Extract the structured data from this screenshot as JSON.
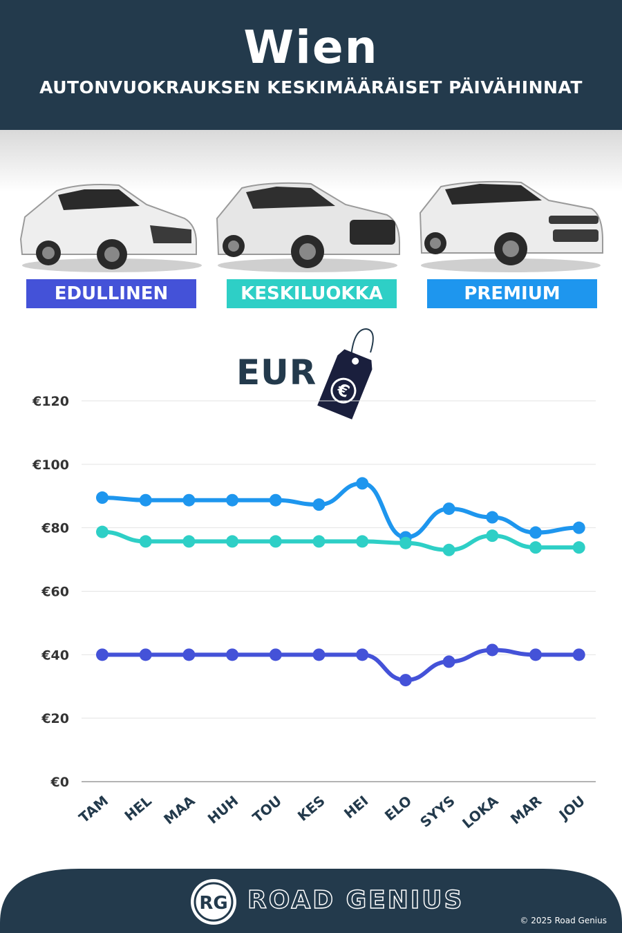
{
  "header": {
    "title": "Wien",
    "subtitle": "AUTONVUOKRAUKSEN KESKIMÄÄRÄISET PÄIVÄHINNAT"
  },
  "categories": [
    {
      "label": "EDULLINEN",
      "color": "#4452d8"
    },
    {
      "label": "KESKILUOKKA",
      "color": "#2ecfc6"
    },
    {
      "label": "PREMIUM",
      "color": "#1e96ee"
    }
  ],
  "currency_label": "EUR",
  "currency_icon": "euro-price-tag-icon",
  "chart_data": {
    "type": "line",
    "categories": [
      "TAM",
      "HEL",
      "MAA",
      "HUH",
      "TOU",
      "KES",
      "HEI",
      "ELO",
      "SYYS",
      "LOKA",
      "MAR",
      "JOU"
    ],
    "y_ticks": [
      "€0",
      "€20",
      "€40",
      "€60",
      "€80",
      "€100",
      "€120"
    ],
    "ylim": [
      0,
      120
    ],
    "grid": true,
    "series": [
      {
        "name": "PREMIUM",
        "color": "#1e96ee",
        "values": [
          89.5,
          88.7,
          88.7,
          88.7,
          88.7,
          87.3,
          94,
          77,
          86,
          83.3,
          78.5,
          80
        ]
      },
      {
        "name": "KESKILUOKKA",
        "color": "#2ecfc6",
        "values": [
          78.7,
          75.7,
          75.7,
          75.7,
          75.7,
          75.7,
          75.7,
          75.2,
          73,
          77.5,
          73.8,
          73.8
        ]
      },
      {
        "name": "EDULLINEN",
        "color": "#4452d8",
        "values": [
          40,
          40,
          40,
          40,
          40,
          40,
          40,
          32,
          37.8,
          41.5,
          40,
          40
        ]
      }
    ]
  },
  "footer": {
    "logo_text": "RG",
    "brand": "ROAD GENIUS",
    "copyright": "© 2025 Road Genius"
  }
}
